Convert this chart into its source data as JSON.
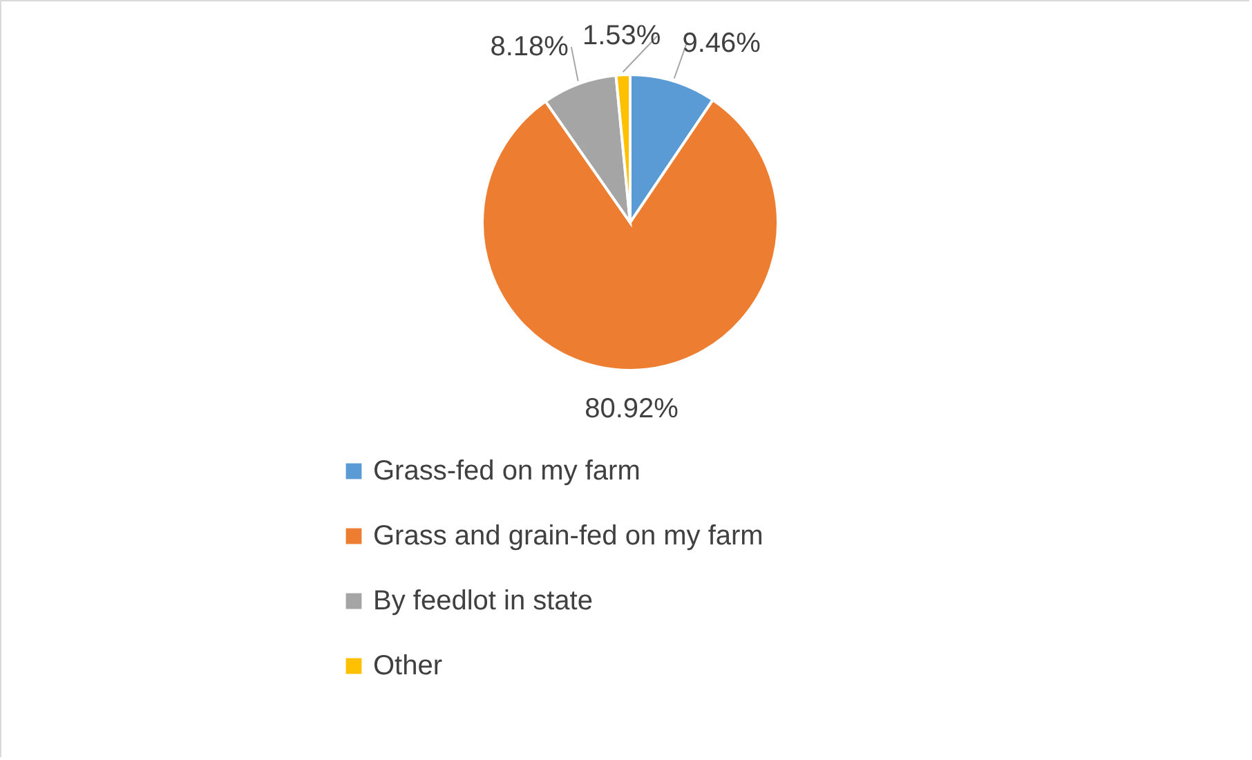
{
  "chart_data": {
    "type": "pie",
    "categories": [
      "Grass-fed on my farm",
      "Grass and grain-fed on my farm",
      "By feedlot in state",
      "Other"
    ],
    "values": [
      9.46,
      80.92,
      8.18,
      1.53
    ],
    "colors": [
      "#5b9bd5",
      "#ed7d31",
      "#a5a5a5",
      "#ffc000"
    ],
    "value_labels": [
      "9.46%",
      "80.92%",
      "8.18%",
      "1.53%"
    ],
    "legend": "bottom"
  }
}
